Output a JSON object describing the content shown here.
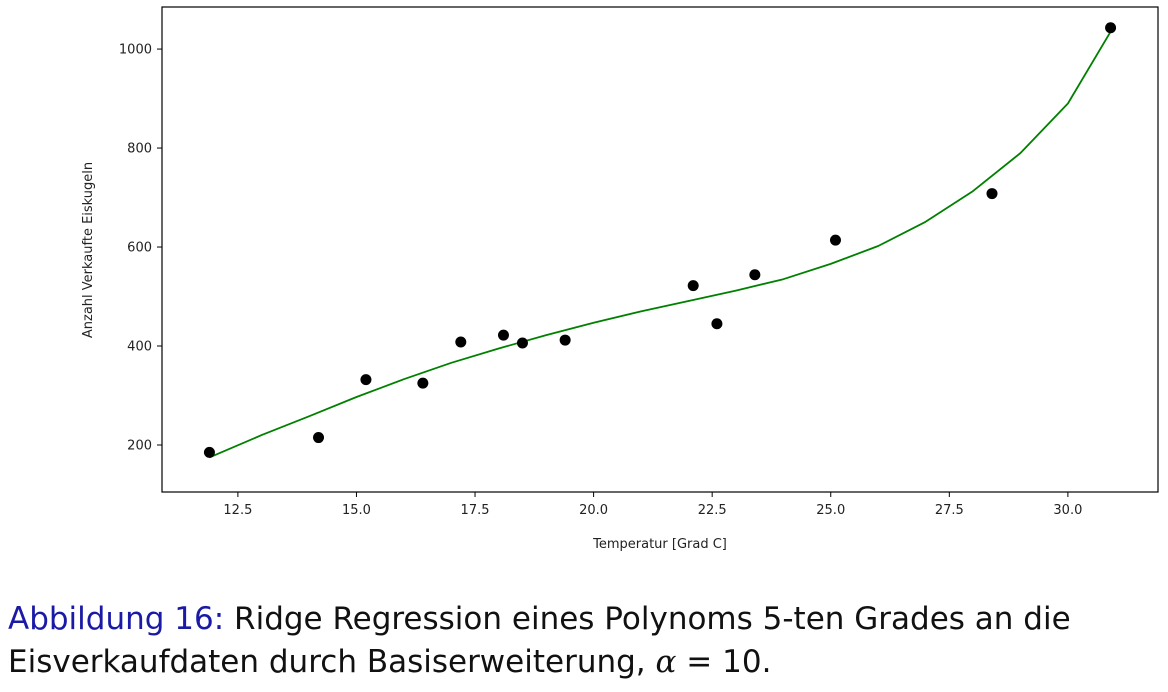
{
  "chart_data": {
    "type": "scatter",
    "xlabel": "Temperatur [Grad C]",
    "ylabel": "Anzahl Verkaufte Eiskugeln",
    "xlim": [
      10.9,
      31.9
    ],
    "ylim": [
      105,
      1085
    ],
    "x_ticks": [
      12.5,
      15.0,
      17.5,
      20.0,
      22.5,
      25.0,
      27.5,
      30.0
    ],
    "x_tick_labels": [
      "12.5",
      "15.0",
      "17.5",
      "20.0",
      "22.5",
      "25.0",
      "27.5",
      "30.0"
    ],
    "y_ticks": [
      200,
      400,
      600,
      800,
      1000
    ],
    "y_tick_labels": [
      "200",
      "400",
      "600",
      "800",
      "1000"
    ],
    "grid": false,
    "series": [
      {
        "kind": "scatter",
        "color": "#000000",
        "points": [
          [
            11.9,
            185
          ],
          [
            14.2,
            215
          ],
          [
            15.2,
            332
          ],
          [
            16.4,
            325
          ],
          [
            17.2,
            408
          ],
          [
            18.1,
            422
          ],
          [
            18.5,
            406
          ],
          [
            19.4,
            412
          ],
          [
            22.1,
            522
          ],
          [
            22.6,
            445
          ],
          [
            23.4,
            544
          ],
          [
            25.1,
            614
          ],
          [
            28.4,
            708
          ],
          [
            30.9,
            1043
          ]
        ]
      },
      {
        "kind": "line",
        "color": "#008000",
        "points": [
          [
            11.9,
            175
          ],
          [
            13.0,
            220
          ],
          [
            14.0,
            258
          ],
          [
            15.0,
            297
          ],
          [
            16.0,
            333
          ],
          [
            17.0,
            366
          ],
          [
            18.0,
            395
          ],
          [
            19.0,
            422
          ],
          [
            20.0,
            447
          ],
          [
            21.0,
            470
          ],
          [
            22.0,
            491
          ],
          [
            23.0,
            512
          ],
          [
            24.0,
            535
          ],
          [
            25.0,
            566
          ],
          [
            26.0,
            602
          ],
          [
            27.0,
            651
          ],
          [
            28.0,
            713
          ],
          [
            29.0,
            790
          ],
          [
            30.0,
            890
          ],
          [
            30.9,
            1035
          ]
        ]
      }
    ]
  },
  "caption": {
    "label": "Abbildung 16:",
    "text_line1": " Ridge Regression eines Polynoms 5-ten Grades an die",
    "text_line2_before": "Eisverkaufdaten durch Basiserweiterung, ",
    "alpha_symbol": "α",
    "text_line2_after": " = 10."
  }
}
